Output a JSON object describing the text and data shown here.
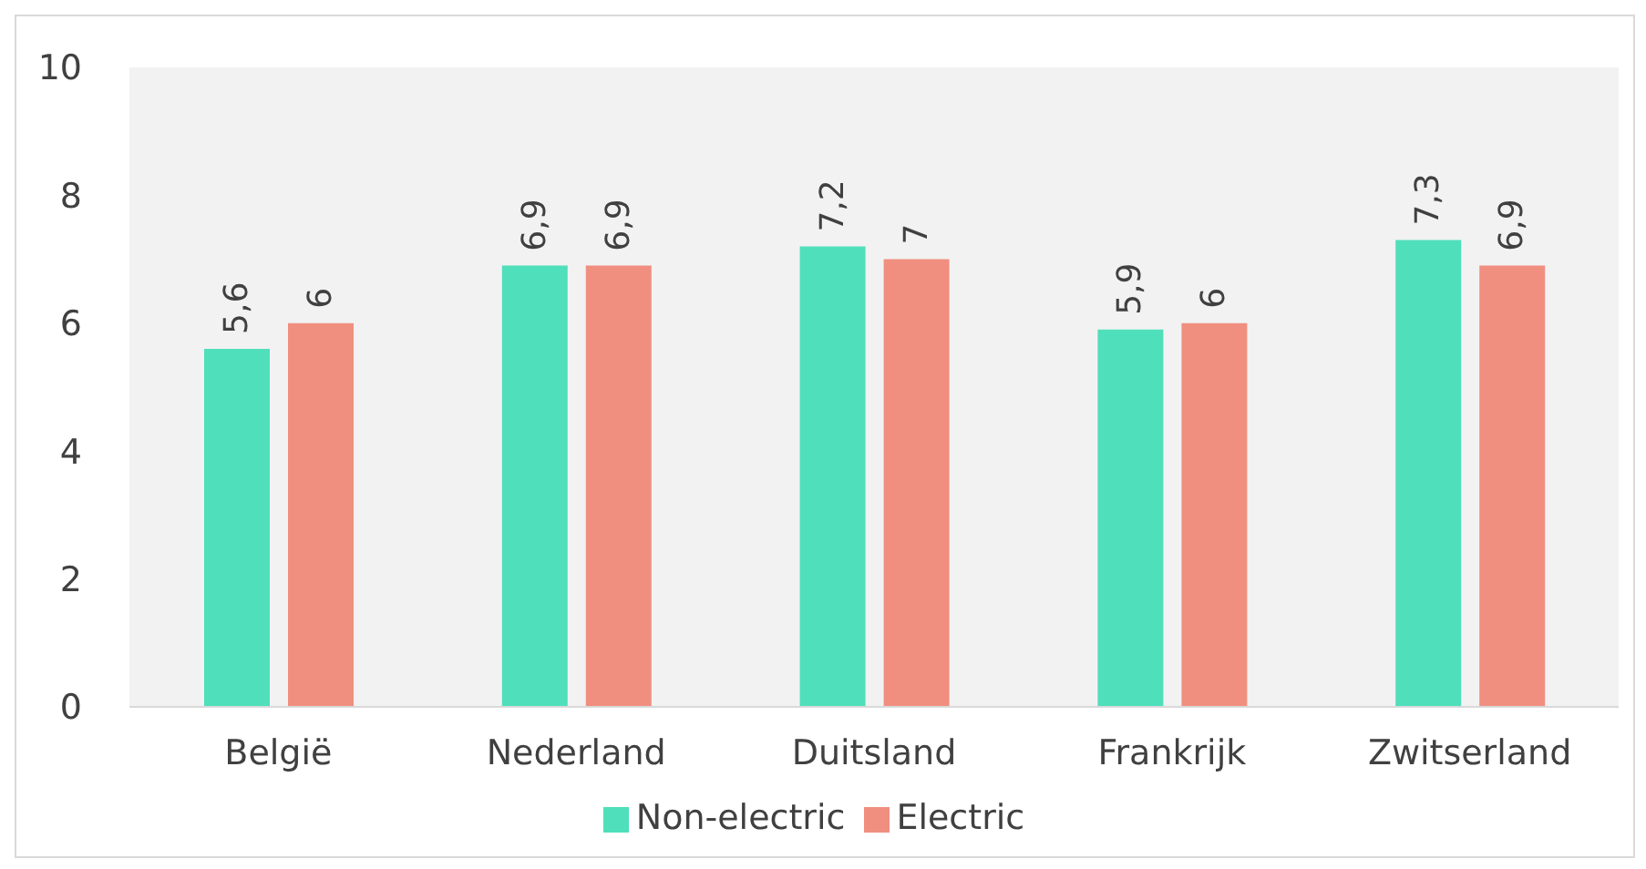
{
  "chart_data": {
    "type": "bar",
    "categories": [
      "België",
      "Nederland",
      "Duitsland",
      "Frankrijk",
      "Zwitserland"
    ],
    "series": [
      {
        "name": "Non-electric",
        "color": "#4fdfbb",
        "values": [
          5.6,
          6.9,
          7.2,
          5.9,
          7.3
        ],
        "value_labels": [
          "5,6",
          "6,9",
          "7,2",
          "5,9",
          "7,3"
        ]
      },
      {
        "name": "Electric",
        "color": "#f08f80",
        "values": [
          6,
          6.9,
          7,
          6,
          6.9
        ],
        "value_labels": [
          "6",
          "6,9",
          "7",
          "6",
          "6,9"
        ]
      }
    ],
    "ylim": [
      0,
      10
    ],
    "yticks": [
      0,
      2,
      4,
      6,
      8,
      10
    ],
    "legend": "bottom"
  }
}
